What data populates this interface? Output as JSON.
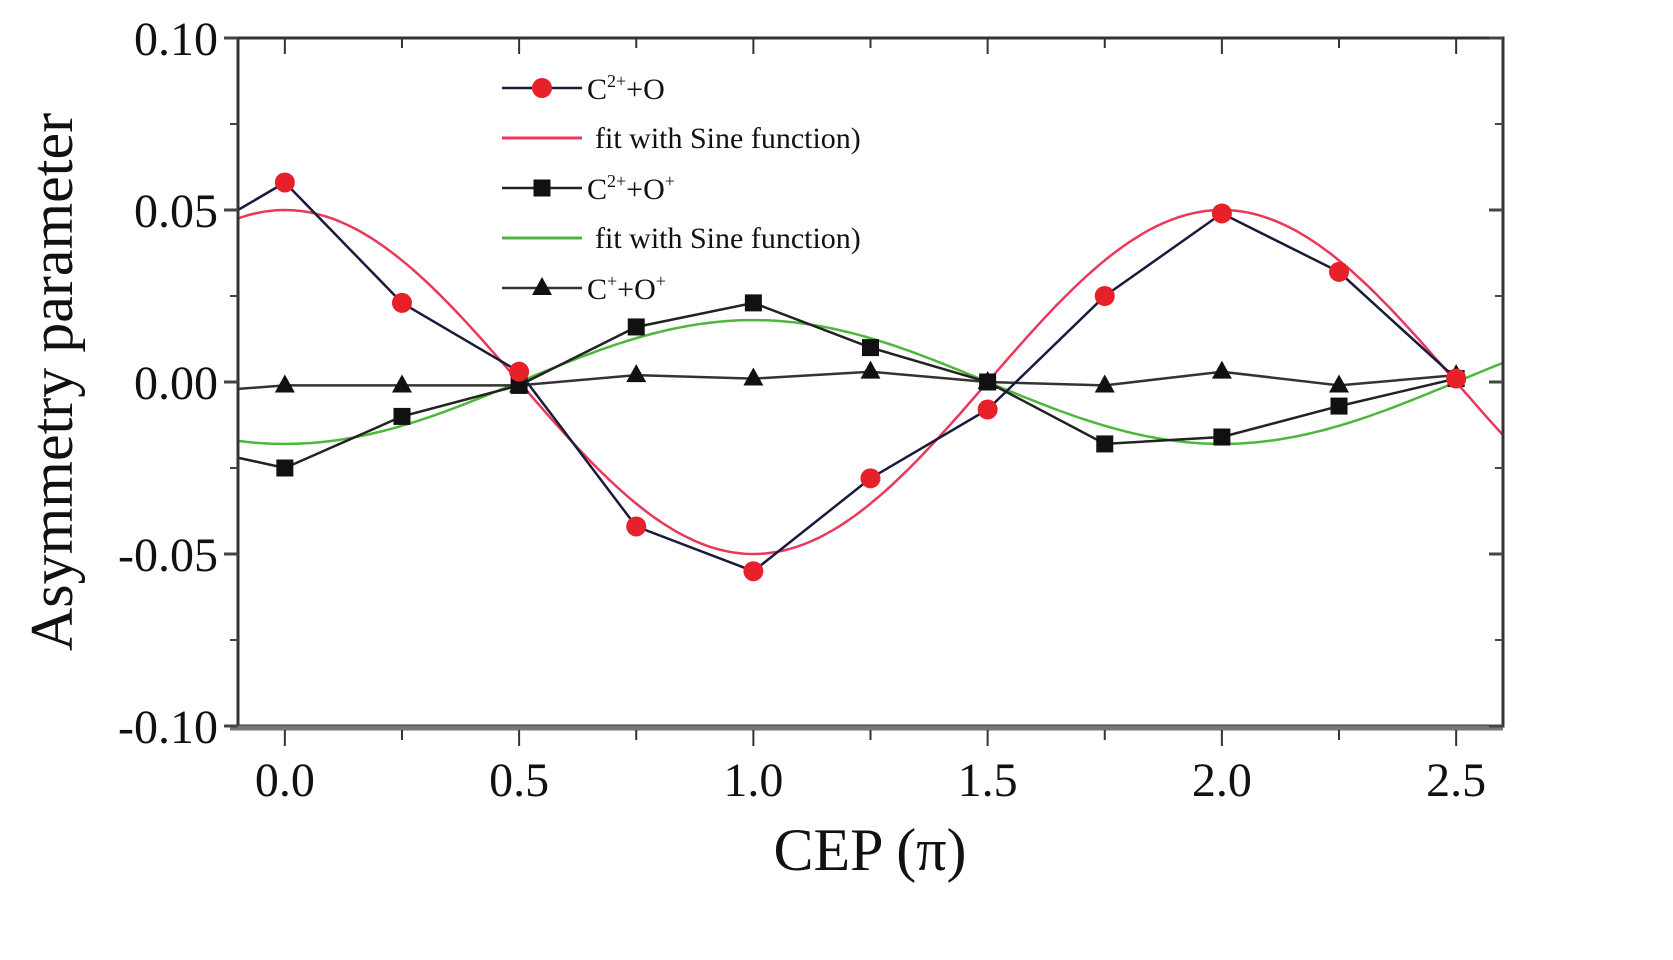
{
  "chart_data": {
    "type": "line",
    "title": "",
    "xlabel": "CEP (π)",
    "ylabel": "Asymmetry parameter",
    "xlim": [
      -0.1,
      2.6
    ],
    "ylim": [
      -0.1,
      0.1
    ],
    "x_ticks": [
      0.0,
      0.5,
      1.0,
      1.5,
      2.0,
      2.5
    ],
    "x_tick_labels": [
      "0.0",
      "0.5",
      "1.0",
      "1.5",
      "2.0",
      "2.5"
    ],
    "x_minor_ticks": [
      0.25,
      0.75,
      1.25,
      1.75,
      2.25
    ],
    "y_ticks": [
      0.1,
      0.05,
      0.0,
      -0.05,
      -0.1
    ],
    "y_tick_labels": [
      "0.10",
      "0.05",
      "0.00",
      "-0.05",
      "-0.10"
    ],
    "y_minor_ticks": [
      0.075,
      0.025,
      -0.025,
      -0.075
    ],
    "grid": false,
    "legend_position": "top-center",
    "x": [
      -0.1,
      0.0,
      0.25,
      0.5,
      0.75,
      1.0,
      1.25,
      1.5,
      1.75,
      2.0,
      2.25,
      2.5
    ],
    "series": [
      {
        "name": "C2+ +O",
        "label_base": "C",
        "label_sup1": "2+",
        "label_mid": "+O",
        "label_sup2": "",
        "marker": "circle",
        "marker_color": "#e8202a",
        "line_color": "#1a1a3a",
        "values": [
          0.05,
          0.058,
          0.023,
          0.003,
          -0.042,
          -0.055,
          -0.028,
          -0.008,
          0.025,
          0.049,
          0.032,
          0.001
        ]
      },
      {
        "name": "C2+ +O+",
        "label_base": "C",
        "label_sup1": "2+",
        "label_mid": "+O",
        "label_sup2": "+",
        "marker": "square",
        "marker_color": "#111111",
        "line_color": "#222222",
        "values": [
          -0.022,
          -0.025,
          -0.01,
          -0.001,
          0.016,
          0.023,
          0.01,
          0.0,
          -0.018,
          -0.016,
          -0.007,
          0.001
        ]
      },
      {
        "name": "C+ +O+",
        "label_base": "C",
        "label_sup1": "+",
        "label_mid": "+O",
        "label_sup2": "+",
        "marker": "triangle",
        "marker_color": "#111111",
        "line_color": "#333333",
        "values": [
          -0.002,
          -0.001,
          -0.001,
          -0.001,
          0.002,
          0.001,
          0.003,
          0.0,
          -0.001,
          0.003,
          -0.001,
          0.002
        ]
      }
    ],
    "fits": [
      {
        "name": "fit with Sine function)",
        "fits_series": "C2+ +O",
        "function": "A*cos(pi*(x - xc))",
        "amplitude": 0.05,
        "period": 2.0,
        "xc": 0.0,
        "color": "#e8395a"
      },
      {
        "name": "fit with Sine function)",
        "fits_series": "C2+ +O+",
        "function": "A*cos(pi*(x - xc))",
        "amplitude": -0.018,
        "period": 2.0,
        "xc": 0.0,
        "color": "#4cb83a"
      }
    ],
    "legend": [
      {
        "kind": "series",
        "index": 0
      },
      {
        "kind": "fit",
        "index": 0
      },
      {
        "kind": "series",
        "index": 1
      },
      {
        "kind": "fit",
        "index": 1
      },
      {
        "kind": "series",
        "index": 2
      }
    ]
  }
}
